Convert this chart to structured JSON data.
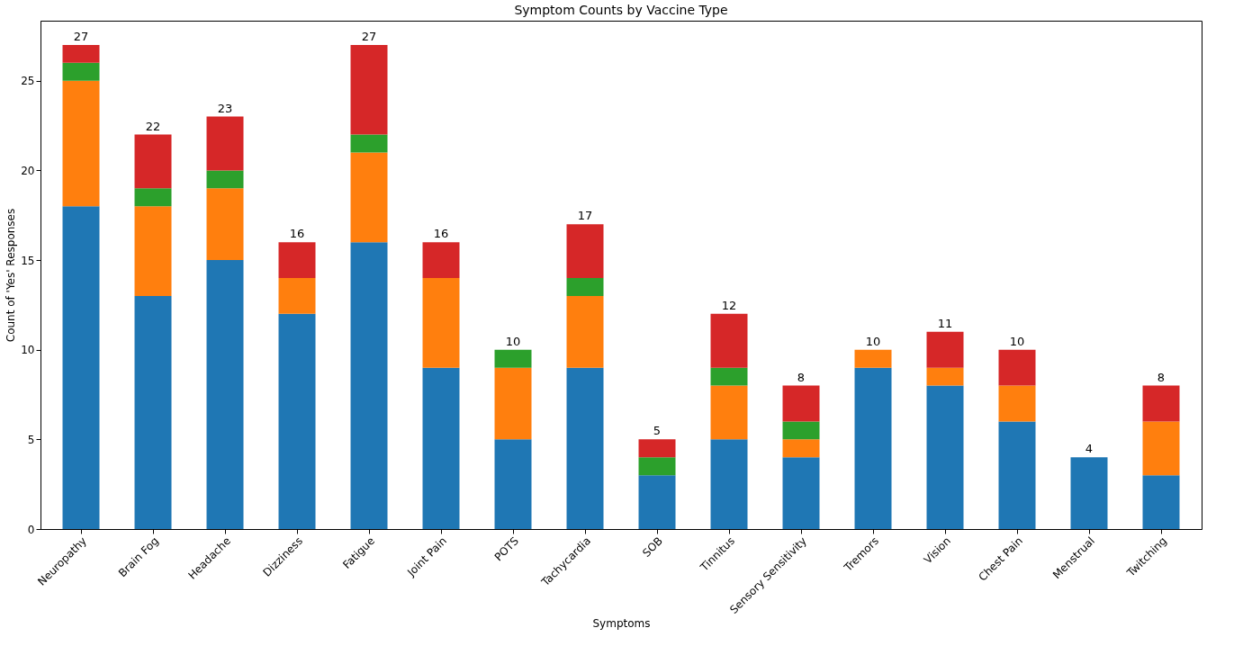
{
  "chart_data": {
    "type": "bar",
    "title": "Symptom Counts by Vaccine Type",
    "xlabel": "Symptoms",
    "ylabel": "Count of 'Yes' Responses",
    "categories": [
      "Neuropathy",
      "Brain Fog",
      "Headache",
      "Dizziness",
      "Fatigue",
      "Joint Pain",
      "POTS",
      "Tachycardia",
      "SOB",
      "Tinnitus",
      "Sensory Sensitivity",
      "Tremors",
      "Vision",
      "Chest Pain",
      "Menstrual",
      "Twitching"
    ],
    "stacked": true,
    "series": [
      {
        "color": "#1f77b4",
        "values": [
          18,
          13,
          15,
          12,
          16,
          9,
          5,
          9,
          3,
          5,
          4,
          9,
          8,
          6,
          4,
          3
        ]
      },
      {
        "color": "#ff7f0e",
        "values": [
          7,
          5,
          4,
          2,
          5,
          5,
          4,
          4,
          0,
          3,
          1,
          1,
          1,
          2,
          0,
          3
        ]
      },
      {
        "color": "#2ca02c",
        "values": [
          1,
          1,
          1,
          0,
          1,
          0,
          1,
          1,
          1,
          1,
          1,
          0,
          0,
          0,
          0,
          0
        ]
      },
      {
        "color": "#d62728",
        "values": [
          1,
          3,
          3,
          2,
          5,
          2,
          0,
          3,
          1,
          3,
          2,
          0,
          2,
          2,
          0,
          2
        ]
      }
    ],
    "totals": [
      "27",
      "22",
      "23",
      "16",
      "27",
      "16",
      "10",
      "17",
      "5",
      "12",
      "8",
      "10",
      "11",
      "10",
      "4",
      "8"
    ],
    "ylim": [
      0,
      28.35
    ],
    "yticks": [
      0,
      5,
      10,
      15,
      20,
      25
    ],
    "grid": false,
    "legend": false
  }
}
